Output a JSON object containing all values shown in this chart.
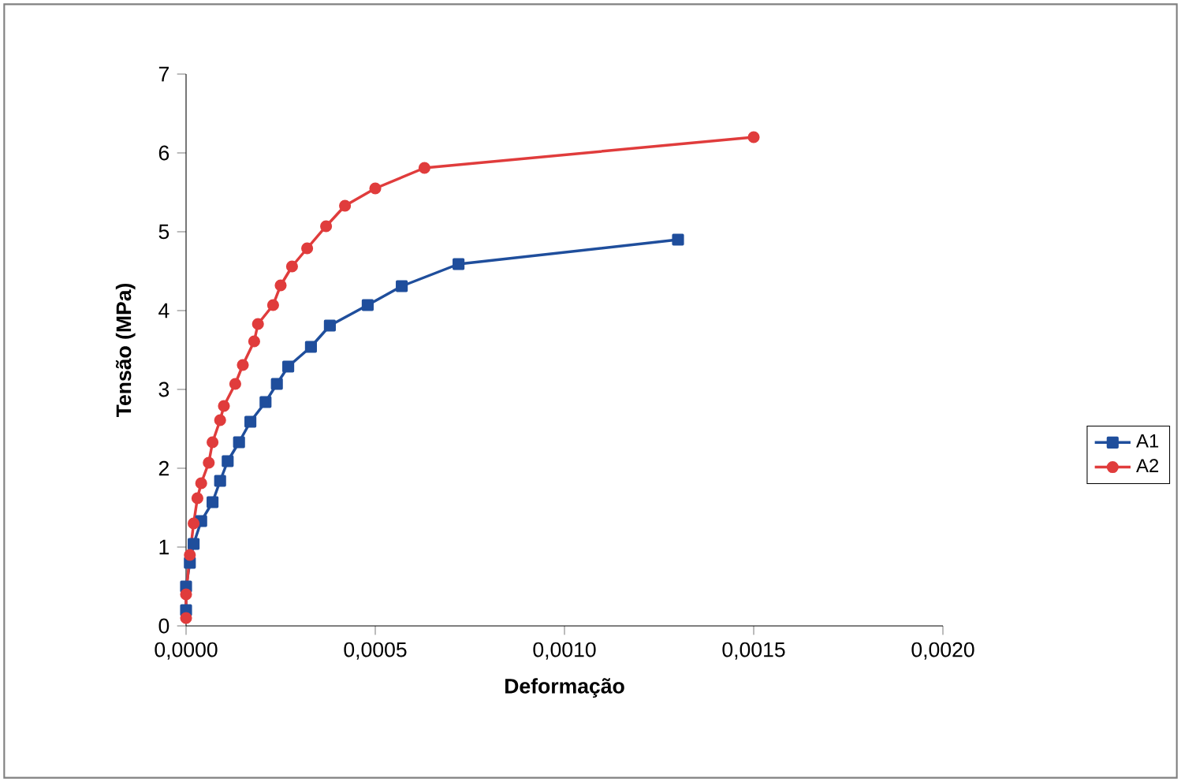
{
  "chart_data": {
    "type": "line",
    "xlabel": "Deformação",
    "ylabel": "Tensão (MPa)",
    "xlim": [
      0,
      0.002
    ],
    "ylim": [
      0,
      7
    ],
    "xticks": [
      {
        "value": 0,
        "label": "0,0000"
      },
      {
        "value": 0.0005,
        "label": "0,0005"
      },
      {
        "value": 0.001,
        "label": "0,0010"
      },
      {
        "value": 0.0015,
        "label": "0,0015"
      },
      {
        "value": 0.002,
        "label": "0,0020"
      }
    ],
    "yticks": [
      0,
      1,
      2,
      3,
      4,
      5,
      6,
      7
    ],
    "grid": false,
    "legend": "right",
    "line_style": "solid",
    "series": [
      {
        "name": "A1",
        "color": "#1f4e9c",
        "marker": "square",
        "x": [
          0,
          0,
          1e-05,
          2e-05,
          4e-05,
          7e-05,
          9e-05,
          0.00011,
          0.00014,
          0.00017,
          0.00021,
          0.00024,
          0.00027,
          0.00033,
          0.00038,
          0.00048,
          0.00057,
          0.00072,
          0.0013
        ],
        "values": [
          0.2,
          0.5,
          0.8,
          1.04,
          1.33,
          1.57,
          1.84,
          2.09,
          2.33,
          2.59,
          2.84,
          3.07,
          3.29,
          3.54,
          3.81,
          4.07,
          4.31,
          4.59,
          4.9
        ]
      },
      {
        "name": "A2",
        "color": "#e03c3c",
        "marker": "circle",
        "x": [
          0,
          0,
          1e-05,
          2e-05,
          3e-05,
          4e-05,
          6e-05,
          7e-05,
          9e-05,
          0.0001,
          0.00013,
          0.00015,
          0.00018,
          0.00019,
          0.00023,
          0.00025,
          0.00028,
          0.00032,
          0.00037,
          0.00042,
          0.0005,
          0.00063,
          0.0015
        ],
        "values": [
          0.1,
          0.4,
          0.9,
          1.3,
          1.62,
          1.81,
          2.07,
          2.33,
          2.61,
          2.79,
          3.07,
          3.31,
          3.61,
          3.83,
          4.07,
          4.32,
          4.56,
          4.79,
          5.07,
          5.33,
          5.55,
          5.81,
          6.2
        ]
      }
    ]
  }
}
